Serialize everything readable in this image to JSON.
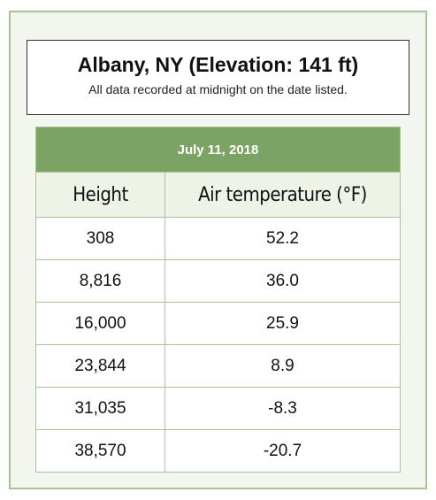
{
  "header": {
    "title": "Albany, NY (Elevation: 141 ft)",
    "subtitle": "All data recorded at midnight on the date listed."
  },
  "table": {
    "caption": "July 11, 2018",
    "columns": [
      "Height",
      "Air temperature (°F)"
    ],
    "rows": [
      [
        "308",
        "52.2"
      ],
      [
        "8,816",
        "36.0"
      ],
      [
        "16,000",
        "25.9"
      ],
      [
        "23,844",
        "8.9"
      ],
      [
        "31,035",
        "-8.3"
      ],
      [
        "38,570",
        "-20.7"
      ]
    ]
  }
}
